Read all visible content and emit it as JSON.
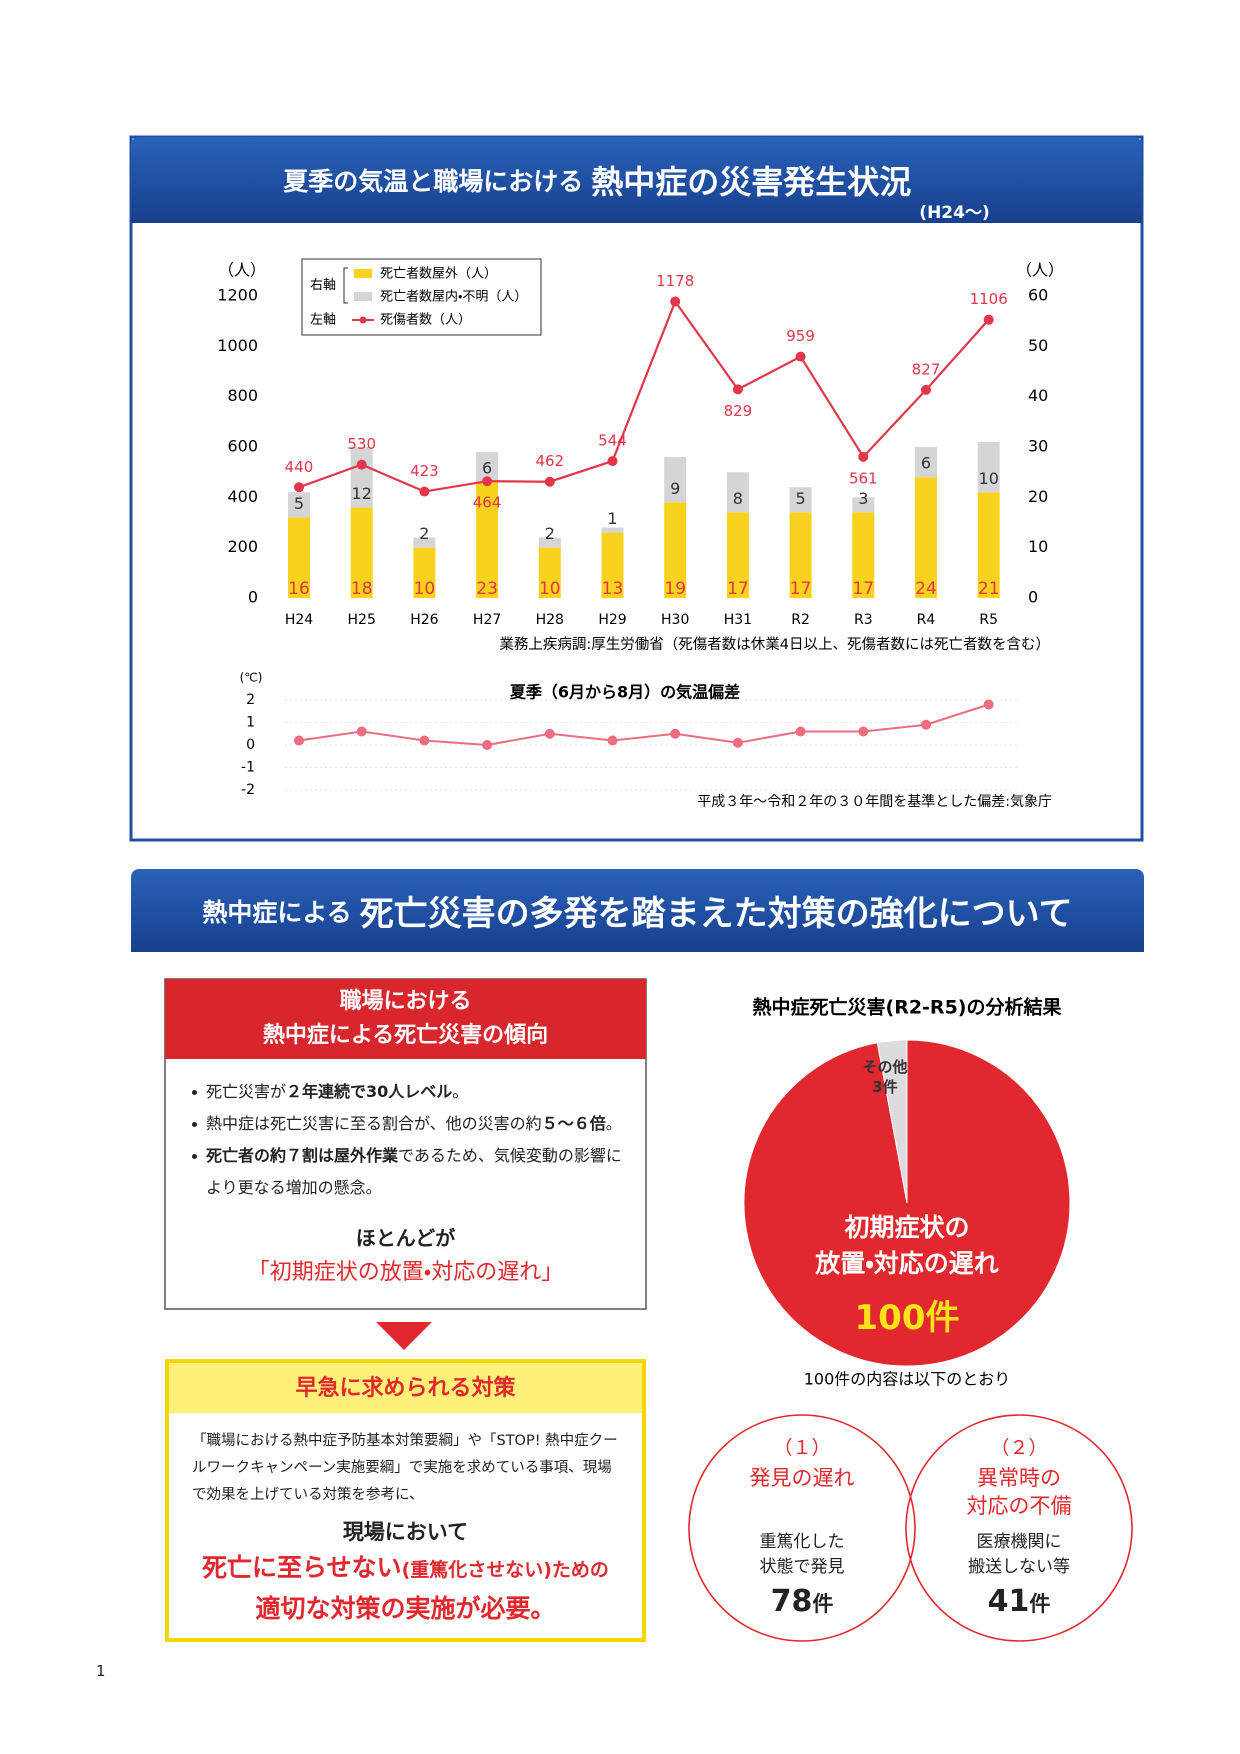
{
  "header": {
    "title_lead": "夏季の気温と職場における",
    "title_main": "熱中症の災害発生状況",
    "title_suffix": "(H24～)"
  },
  "chart_data": [
    {
      "type": "combo",
      "categories": [
        "H24",
        "H25",
        "H26",
        "H27",
        "H28",
        "H29",
        "H30",
        "H31",
        "R2",
        "R3",
        "R4",
        "R5"
      ],
      "ylabel": "（人）",
      "y2label": "（人）",
      "ylim": [
        0,
        1200
      ],
      "yticks": [
        0,
        200,
        400,
        600,
        800,
        1000,
        1200
      ],
      "y2lim": [
        0,
        60
      ],
      "y2ticks": [
        0,
        10,
        20,
        30,
        40,
        50,
        60
      ],
      "legend": "upper-left",
      "legend_groups": {
        "y2": "右軸",
        "y": "左軸"
      },
      "series": [
        {
          "name": "死亡者数屋外（人）",
          "type": "bar",
          "color": "#f8d21c",
          "axis": "y2",
          "values": [
            16,
            18,
            10,
            23,
            10,
            13,
            19,
            17,
            17,
            17,
            24,
            21
          ]
        },
        {
          "name": "死亡者数屋内・不明（人）",
          "type": "bar",
          "color": "#d5d5d8",
          "axis": "y2",
          "values": [
            5,
            12,
            2,
            6,
            2,
            1,
            9,
            8,
            5,
            3,
            6,
            10
          ]
        },
        {
          "name": "死傷者数（人）",
          "type": "line",
          "color": "#e2364a",
          "axis": "y",
          "values": [
            440,
            530,
            423,
            464,
            462,
            544,
            1178,
            829,
            959,
            561,
            827,
            1106
          ]
        }
      ],
      "note": "業務上疾病調:厚生労働省（死傷者数は休業4日以上、死傷者数には死亡者数を含む）"
    },
    {
      "type": "line",
      "title": "夏季（6月から8月）の気温偏差",
      "ylabel": "(℃)",
      "categories": [
        null,
        null,
        null,
        null,
        null,
        null,
        null,
        null,
        null,
        null,
        null,
        null
      ],
      "values": [
        0.2,
        0.6,
        0.2,
        0.0,
        0.5,
        0.2,
        0.5,
        0.1,
        0.6,
        0.6,
        0.9,
        1.8
      ],
      "ylim": [
        -2,
        2
      ],
      "yticks": [
        -2,
        -1,
        0,
        1,
        2
      ],
      "grid": true,
      "color": "#ec6d80",
      "note": "平成３年～令和２年の３０年間を基準とした偏差:気象庁"
    },
    {
      "type": "pie",
      "title": "熱中症死亡災害(R2-R5)の分析結果",
      "categories": [
        "初期症状の\n放置・対応の遅れ",
        "その他"
      ],
      "values": [
        100,
        3
      ],
      "value_labels": [
        "100件",
        "3件"
      ],
      "colors": [
        "#e0282e",
        "#dcdcdf"
      ],
      "note": "100件の内容は以下のとおり"
    }
  ],
  "section2": {
    "title_lead": "熱中症による",
    "title_main": "死亡災害の多発を踏まえた対策の強化について",
    "trend": {
      "title": [
        "職場における",
        "熱中症による死亡災害の傾向"
      ],
      "bullets": [
        [
          {
            "text": "死亡災害が"
          },
          {
            "text": "２年連続で30人レベル",
            "bold": true
          },
          {
            "text": "。"
          }
        ],
        [
          {
            "text": "熱中症は死亡災害に至る割合が、他の災害の約"
          },
          {
            "text": "５～６倍",
            "bold": true
          },
          {
            "text": "。"
          }
        ],
        [
          {
            "text": "死亡者の約７割は屋外作業",
            "bold": true
          },
          {
            "text": "であるため、気候変動の影響により更なる増加の懸念。"
          }
        ]
      ],
      "summary_lead": "ほとんどが",
      "summary": "「初期症状の放置・対応の遅れ」"
    },
    "measures": {
      "title": "早急に求められる対策",
      "text": "「職場における熱中症予防基本対策要綱」や「STOP! 熱中症クールワークキャンペーン実施要綱」で実施を求めている事項、現場で効果を上げている対策を参考に、",
      "lead": "現場において",
      "conclusion": [
        [
          {
            "text": "死亡に至らせない"
          },
          {
            "text": "(重篤化させない)ための",
            "small": true
          }
        ],
        [
          {
            "text": "適切な対策の実施が必要。"
          }
        ]
      ]
    },
    "breakdown": [
      {
        "number": "（１）",
        "title": [
          "発見の遅れ"
        ],
        "desc": [
          "重篤化した",
          "状態で発見"
        ],
        "count": 78,
        "unit": "件"
      },
      {
        "number": "（２）",
        "title": [
          "異常時の",
          "対応の不備"
        ],
        "desc": [
          "医療機関に",
          "搬送しない等"
        ],
        "count": 41,
        "unit": "件"
      }
    ]
  },
  "page_number": "1"
}
